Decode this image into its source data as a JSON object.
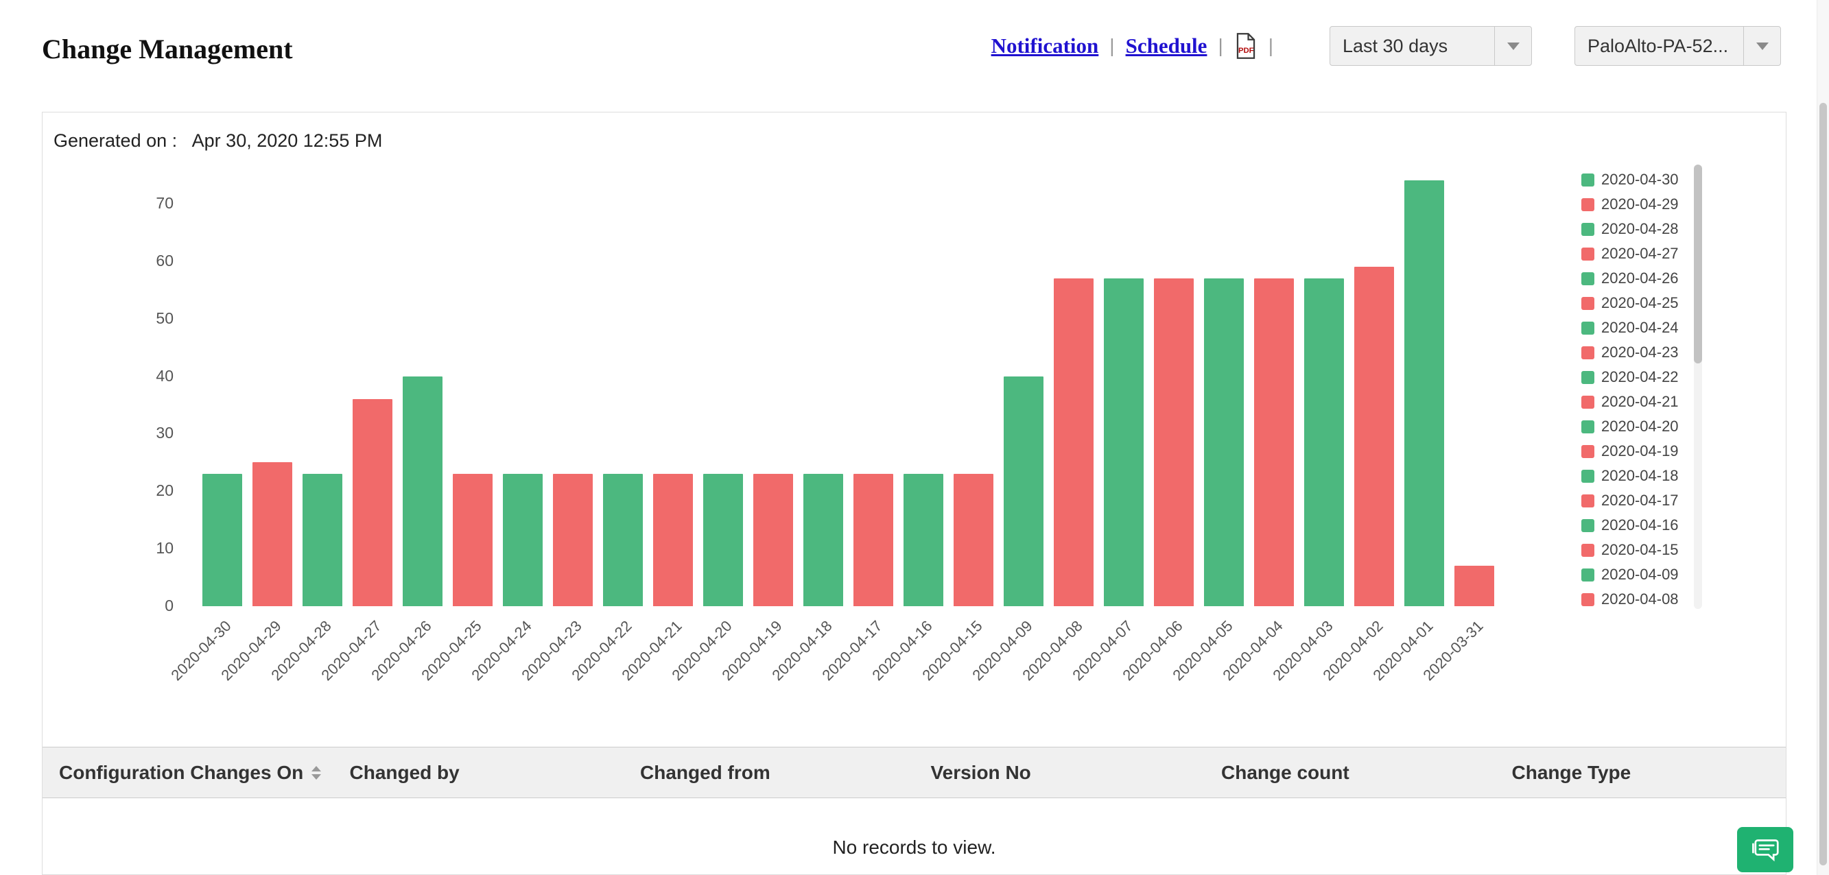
{
  "header": {
    "title": "Change Management",
    "links": {
      "notification": "Notification",
      "schedule": "Schedule"
    },
    "separator": "|",
    "range_dropdown": {
      "value": "Last 30 days"
    },
    "device_dropdown": {
      "value": "PaloAlto-PA-52..."
    }
  },
  "icons": {
    "pdf": "pdf-export-icon",
    "dropdown_arrow": "chevron-down-icon",
    "sort": "sort-arrows-icon",
    "chat": "chat-feedback-icon"
  },
  "generated": {
    "label": "Generated on :",
    "value": "Apr 30, 2020 12:55 PM"
  },
  "chart_data": {
    "type": "bar",
    "title": "",
    "xlabel": "",
    "ylabel": "",
    "grid": false,
    "legend_position": "right",
    "ylim": [
      0,
      74
    ],
    "yticks": [
      0,
      10,
      20,
      30,
      40,
      50,
      60,
      70
    ],
    "categories": [
      "2020-04-30",
      "2020-04-29",
      "2020-04-28",
      "2020-04-27",
      "2020-04-26",
      "2020-04-25",
      "2020-04-24",
      "2020-04-23",
      "2020-04-22",
      "2020-04-21",
      "2020-04-20",
      "2020-04-19",
      "2020-04-18",
      "2020-04-17",
      "2020-04-16",
      "2020-04-15",
      "2020-04-09",
      "2020-04-08",
      "2020-04-07",
      "2020-04-06",
      "2020-04-05",
      "2020-04-04",
      "2020-04-03",
      "2020-04-02",
      "2020-04-01",
      "2020-03-31"
    ],
    "values": [
      23,
      25,
      23,
      36,
      40,
      23,
      23,
      23,
      23,
      23,
      23,
      23,
      23,
      23,
      23,
      23,
      40,
      57,
      57,
      57,
      57,
      57,
      57,
      59,
      74,
      7
    ],
    "color_pattern": "alternating",
    "colors": {
      "even": "#4cb87f",
      "odd": "#f16a6a"
    },
    "legend_visible": [
      "2020-04-30",
      "2020-04-29",
      "2020-04-28",
      "2020-04-27",
      "2020-04-26",
      "2020-04-25",
      "2020-04-24",
      "2020-04-23",
      "2020-04-22",
      "2020-04-21",
      "2020-04-20",
      "2020-04-19",
      "2020-04-18",
      "2020-04-17",
      "2020-04-16",
      "2020-04-15",
      "2020-04-09",
      "2020-04-08"
    ]
  },
  "table": {
    "columns": [
      "Configuration Changes On",
      "Changed by",
      "Changed from",
      "Version No",
      "Change count",
      "Change Type"
    ],
    "empty_message": "No records to view."
  },
  "theme": {
    "link_color": "#2012d0",
    "bar_green": "#4cb87f",
    "bar_red": "#f16a6a",
    "chat_button_green": "#1fb271",
    "table_header_bg": "#f0f0f0"
  }
}
